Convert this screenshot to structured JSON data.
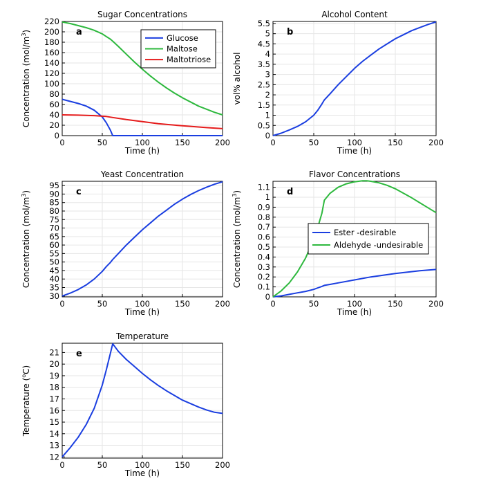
{
  "chart_data": [
    {
      "id": "a",
      "type": "line",
      "title": "Sugar Concentrations",
      "panel_label": "a",
      "xlabel": "Time (h)",
      "ylabel_main": "Concentration (mol/m",
      "ylabel_sup": "3",
      "ylabel_end": ")",
      "xlim": [
        0,
        200
      ],
      "ylim": [
        0,
        220
      ],
      "xticks": [
        0,
        50,
        100,
        150,
        200
      ],
      "yticks": [
        0,
        20,
        40,
        60,
        80,
        100,
        120,
        140,
        160,
        180,
        200,
        220
      ],
      "grid": true,
      "legend": "top-right",
      "series": [
        {
          "name": "Glucose",
          "color": "#1a3ee0",
          "x": [
            0,
            10,
            20,
            30,
            40,
            50,
            55,
            60,
            63,
            70,
            100,
            150,
            200
          ],
          "y": [
            70,
            66,
            62,
            57,
            49,
            36,
            25,
            11,
            0,
            0,
            0,
            0,
            0
          ]
        },
        {
          "name": "Maltose",
          "color": "#2db83d",
          "x": [
            0,
            10,
            20,
            30,
            40,
            50,
            55,
            60,
            63,
            70,
            80,
            90,
            100,
            110,
            120,
            130,
            140,
            150,
            160,
            170,
            180,
            190,
            200
          ],
          "y": [
            219,
            216,
            212,
            208,
            203,
            196,
            191,
            186,
            182,
            172,
            157,
            142,
            128,
            115,
            103,
            92,
            82,
            73,
            65,
            57,
            51,
            45,
            40
          ]
        },
        {
          "name": "Maltotriose",
          "color": "#e51b1b",
          "x": [
            0,
            20,
            40,
            55,
            63,
            80,
            100,
            120,
            150,
            180,
            200
          ],
          "y": [
            40,
            39.5,
            38.5,
            37,
            35,
            31,
            27,
            23,
            19,
            15.5,
            13.5
          ]
        }
      ]
    },
    {
      "id": "b",
      "type": "line",
      "title": "Alcohol Content",
      "panel_label": "b",
      "xlabel": "Time (h)",
      "ylabel_main": "vol% alcohol",
      "xlim": [
        0,
        200
      ],
      "ylim": [
        0,
        5.6
      ],
      "xticks": [
        0,
        50,
        100,
        150,
        200
      ],
      "yticks": [
        0,
        0.5,
        1,
        1.5,
        2,
        2.5,
        3,
        3.5,
        4,
        4.5,
        5,
        5.5
      ],
      "grid": true,
      "series": [
        {
          "name": "Alcohol",
          "color": "#1a3ee0",
          "x": [
            0,
            10,
            20,
            30,
            40,
            50,
            55,
            60,
            63,
            70,
            80,
            90,
            100,
            110,
            120,
            130,
            140,
            150,
            160,
            170,
            180,
            190,
            200
          ],
          "y": [
            0,
            0.12,
            0.28,
            0.45,
            0.68,
            1.0,
            1.25,
            1.55,
            1.75,
            2.05,
            2.5,
            2.9,
            3.3,
            3.65,
            3.95,
            4.25,
            4.5,
            4.75,
            4.95,
            5.15,
            5.3,
            5.45,
            5.58
          ]
        }
      ]
    },
    {
      "id": "c",
      "type": "line",
      "title": "Yeast Concentration",
      "panel_label": "c",
      "xlabel": "Time (h)",
      "ylabel_main": "Concentration (mol/m",
      "ylabel_sup": "3",
      "ylabel_end": ")",
      "xlim": [
        0,
        200
      ],
      "ylim": [
        29.5,
        97.5
      ],
      "xticks": [
        0,
        50,
        100,
        150,
        200
      ],
      "yticks": [
        30,
        35,
        40,
        45,
        50,
        55,
        60,
        65,
        70,
        75,
        80,
        85,
        90,
        95
      ],
      "grid": true,
      "series": [
        {
          "name": "Yeast",
          "color": "#1a3ee0",
          "x": [
            0,
            10,
            20,
            30,
            40,
            50,
            55,
            60,
            63,
            70,
            80,
            90,
            100,
            110,
            120,
            130,
            140,
            150,
            160,
            170,
            180,
            190,
            200
          ],
          "y": [
            30,
            31.7,
            33.8,
            36.5,
            40,
            44.5,
            47.3,
            49.7,
            51.5,
            55,
            60,
            64.5,
            69,
            73,
            77,
            80.5,
            84,
            87,
            89.7,
            92,
            94,
            95.8,
            97.2
          ]
        }
      ]
    },
    {
      "id": "d",
      "type": "line",
      "title": "Flavor Concentrations",
      "panel_label": "d",
      "xlabel": "Time (h)",
      "ylabel_main": "Concentration (mol/m",
      "ylabel_sup": "3",
      "ylabel_end": ")",
      "xlim": [
        0,
        200
      ],
      "ylim": [
        0,
        1.16
      ],
      "xticks": [
        0,
        50,
        100,
        150,
        200
      ],
      "yticks": [
        0,
        0.1,
        0.2,
        0.3,
        0.4,
        0.5,
        0.6,
        0.7,
        0.8,
        0.9,
        1,
        1.1
      ],
      "grid": true,
      "legend": "center-right",
      "series": [
        {
          "name": "Ester -desirable",
          "color": "#1a3ee0",
          "x": [
            0,
            10,
            20,
            30,
            40,
            50,
            55,
            60,
            63,
            70,
            80,
            100,
            120,
            150,
            180,
            200
          ],
          "y": [
            0,
            0.01,
            0.025,
            0.04,
            0.055,
            0.075,
            0.09,
            0.105,
            0.115,
            0.125,
            0.14,
            0.17,
            0.2,
            0.235,
            0.262,
            0.275
          ]
        },
        {
          "name": "Aldehyde -undesirable",
          "color": "#2db83d",
          "x": [
            0,
            10,
            20,
            30,
            40,
            50,
            55,
            60,
            63,
            70,
            80,
            90,
            100,
            110,
            115,
            120,
            130,
            140,
            150,
            160,
            170,
            180,
            190,
            200
          ],
          "y": [
            0,
            0.06,
            0.14,
            0.25,
            0.39,
            0.58,
            0.7,
            0.84,
            0.97,
            1.04,
            1.1,
            1.135,
            1.155,
            1.165,
            1.165,
            1.16,
            1.145,
            1.12,
            1.085,
            1.04,
            0.995,
            0.945,
            0.895,
            0.845
          ]
        }
      ]
    },
    {
      "id": "e",
      "type": "line",
      "title": "Temperature",
      "panel_label": "e",
      "xlabel": "Time (h)",
      "ylabel_main": "Temperature (",
      "ylabel_sup": "o",
      "ylabel_end": "C)",
      "xlim": [
        0,
        200
      ],
      "ylim": [
        11.9,
        21.8
      ],
      "xticks": [
        0,
        50,
        100,
        150,
        200
      ],
      "yticks": [
        12,
        13,
        14,
        15,
        16,
        17,
        18,
        19,
        20,
        21
      ],
      "grid": true,
      "series": [
        {
          "name": "Temperature",
          "color": "#1a3ee0",
          "x": [
            0,
            10,
            20,
            30,
            40,
            50,
            55,
            60,
            63,
            70,
            80,
            90,
            100,
            110,
            120,
            130,
            140,
            150,
            160,
            170,
            180,
            190,
            200
          ],
          "y": [
            12,
            12.8,
            13.7,
            14.8,
            16.2,
            18.2,
            19.5,
            20.9,
            21.75,
            21.1,
            20.4,
            19.8,
            19.2,
            18.65,
            18.15,
            17.7,
            17.3,
            16.9,
            16.6,
            16.3,
            16.05,
            15.85,
            15.75
          ]
        }
      ]
    }
  ]
}
